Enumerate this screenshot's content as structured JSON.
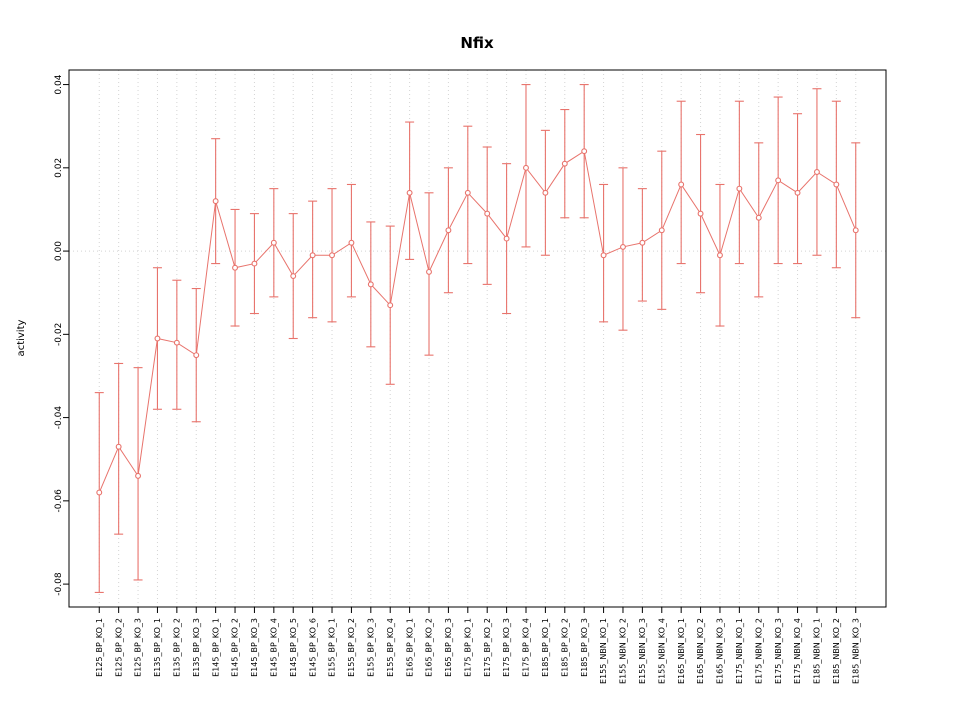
{
  "chart_data": {
    "type": "line",
    "title": "Nfix",
    "xlabel": "",
    "ylabel": "activity",
    "ylim": [
      -0.0855,
      0.0435
    ],
    "yticks": [
      -0.08,
      -0.06,
      -0.04,
      -0.02,
      0.0,
      0.02,
      0.04
    ],
    "grid": true,
    "legend": "none",
    "point_color": "#e8736c",
    "grid_color": "#d4d4d4",
    "box_color": "#000000",
    "categories": [
      "E125_BP_KO_1",
      "E125_BP_KO_2",
      "E125_BP_KO_3",
      "E135_BP_KO_1",
      "E135_BP_KO_2",
      "E135_BP_KO_3",
      "E145_BP_KO_1",
      "E145_BP_KO_2",
      "E145_BP_KO_3",
      "E145_BP_KO_4",
      "E145_BP_KO_5",
      "E145_BP_KO_6",
      "E155_BP_KO_1",
      "E155_BP_KO_2",
      "E155_BP_KO_3",
      "E155_BP_KO_4",
      "E165_BP_KO_1",
      "E165_BP_KO_2",
      "E165_BP_KO_3",
      "E175_BP_KO_1",
      "E175_BP_KO_2",
      "E175_BP_KO_3",
      "E175_BP_KO_4",
      "E185_BP_KO_1",
      "E185_BP_KO_2",
      "E185_BP_KO_3",
      "E155_NBN_KO_1",
      "E155_NBN_KO_2",
      "E155_NBN_KO_3",
      "E155_NBN_KO_4",
      "E165_NBN_KO_1",
      "E165_NBN_KO_2",
      "E165_NBN_KO_3",
      "E175_NBN_KO_1",
      "E175_NBN_KO_2",
      "E175_NBN_KO_3",
      "E175_NBN_KO_4",
      "E185_NBN_KO_1",
      "E185_NBN_KO_2",
      "E185_NBN_KO_3"
    ],
    "series": [
      {
        "name": "activity",
        "means": [
          -0.058,
          -0.047,
          -0.054,
          -0.021,
          -0.022,
          -0.025,
          0.012,
          -0.004,
          -0.003,
          0.002,
          -0.006,
          -0.001,
          -0.001,
          0.002,
          -0.008,
          -0.013,
          0.014,
          -0.005,
          0.005,
          0.014,
          0.009,
          0.003,
          0.02,
          0.014,
          0.021,
          0.024,
          -0.001,
          0.001,
          0.002,
          0.005,
          0.016,
          0.009,
          -0.001,
          0.015,
          0.008,
          0.017,
          0.014,
          0.019,
          0.016,
          0.005
        ],
        "lower": [
          -0.082,
          -0.068,
          -0.079,
          -0.038,
          -0.038,
          -0.041,
          -0.003,
          -0.018,
          -0.015,
          -0.011,
          -0.021,
          -0.016,
          -0.017,
          -0.011,
          -0.023,
          -0.032,
          -0.002,
          -0.025,
          -0.01,
          -0.003,
          -0.008,
          -0.015,
          0.001,
          -0.001,
          0.008,
          0.008,
          -0.017,
          -0.019,
          -0.012,
          -0.014,
          -0.003,
          -0.01,
          -0.018,
          -0.003,
          -0.011,
          -0.003,
          -0.003,
          -0.001,
          -0.004,
          -0.016
        ],
        "upper": [
          -0.034,
          -0.027,
          -0.028,
          -0.004,
          -0.007,
          -0.009,
          0.027,
          0.01,
          0.009,
          0.015,
          0.009,
          0.012,
          0.015,
          0.016,
          0.007,
          0.006,
          0.031,
          0.014,
          0.02,
          0.03,
          0.025,
          0.021,
          0.04,
          0.029,
          0.034,
          0.04,
          0.016,
          0.02,
          0.015,
          0.024,
          0.036,
          0.028,
          0.016,
          0.036,
          0.026,
          0.037,
          0.033,
          0.039,
          0.036,
          0.026
        ]
      }
    ]
  }
}
